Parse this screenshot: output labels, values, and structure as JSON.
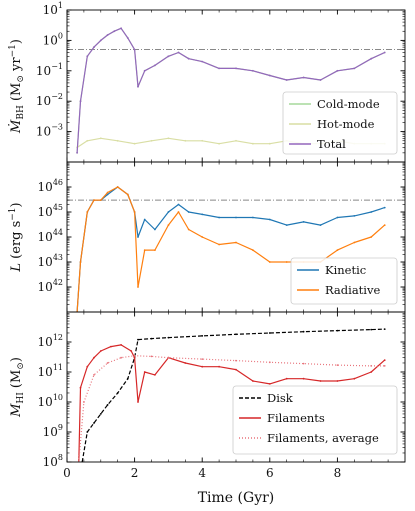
{
  "chart_data": [
    {
      "type": "line",
      "ylabel": "Ṁ_BH (M⊙ yr⁻¹)",
      "ylabel_parts": [
        "Ṁ",
        "BH",
        "(M",
        "⊙",
        " yr",
        "−1",
        ")"
      ],
      "yscale": "log",
      "ylim": [
        0.0001,
        10
      ],
      "ytick_values": [
        0.001,
        0.01,
        0.1,
        1,
        10
      ],
      "ytick_labels": [
        {
          "base": "10",
          "exp": "−3"
        },
        {
          "base": "10",
          "exp": "−2"
        },
        {
          "base": "10",
          "exp": "−1"
        },
        {
          "base": "10",
          "exp": "0"
        },
        {
          "base": "10",
          "exp": "1"
        }
      ],
      "reference_line": 0.5,
      "legend": {
        "placement": "lower-right"
      },
      "series": [
        {
          "name": "Cold-mode",
          "color": "#a6d99b",
          "x": [
            0.3,
            0.4,
            0.6,
            0.8,
            1.0,
            1.2,
            1.4,
            1.6,
            1.8,
            2.0,
            2.1,
            2.3,
            2.6,
            3.0,
            3.3,
            3.6,
            4.0,
            4.5,
            5.0,
            5.5,
            6.0,
            6.5,
            7.0,
            7.5,
            8.0,
            8.5,
            9.0,
            9.4
          ],
          "y": [
            0.0002,
            0.01,
            0.3,
            0.6,
            1.0,
            1.5,
            2.0,
            2.5,
            1.2,
            0.5,
            0.03,
            0.1,
            0.15,
            0.3,
            0.4,
            0.25,
            0.2,
            0.12,
            0.12,
            0.1,
            0.07,
            0.05,
            0.06,
            0.05,
            0.1,
            0.12,
            0.25,
            0.4
          ]
        },
        {
          "name": "Hot-mode",
          "color": "#d9dea4",
          "x": [
            0.3,
            0.6,
            1.0,
            1.5,
            2.0,
            2.5,
            3.0,
            3.5,
            4.0,
            4.5,
            5.0,
            5.5,
            6.0,
            6.5,
            7.0,
            7.5,
            8.0,
            8.5,
            9.0,
            9.4
          ],
          "y": [
            0.0003,
            0.0005,
            0.0006,
            0.0005,
            0.0004,
            0.0005,
            0.0006,
            0.0005,
            0.0005,
            0.0004,
            0.0005,
            0.0004,
            0.0004,
            0.0005,
            0.0004,
            0.0004,
            0.0005,
            0.0004,
            0.0004,
            0.0004
          ]
        },
        {
          "name": "Total",
          "color": "#9467bd",
          "x": [
            0.3,
            0.4,
            0.6,
            0.8,
            1.0,
            1.2,
            1.4,
            1.6,
            1.8,
            2.0,
            2.1,
            2.3,
            2.6,
            3.0,
            3.3,
            3.6,
            4.0,
            4.5,
            5.0,
            5.5,
            6.0,
            6.5,
            7.0,
            7.5,
            8.0,
            8.5,
            9.0,
            9.4
          ],
          "y": [
            0.0002,
            0.01,
            0.3,
            0.6,
            1.0,
            1.5,
            2.0,
            2.5,
            1.2,
            0.5,
            0.03,
            0.1,
            0.15,
            0.3,
            0.4,
            0.25,
            0.2,
            0.12,
            0.12,
            0.1,
            0.07,
            0.05,
            0.06,
            0.05,
            0.1,
            0.12,
            0.25,
            0.4
          ]
        }
      ]
    },
    {
      "type": "line",
      "ylabel": "L (erg s⁻¹)",
      "ylabel_parts": [
        "L",
        "(erg s",
        "−1",
        ")"
      ],
      "yscale": "log",
      "ylim": [
        1e+41,
        1e+47
      ],
      "ytick_values": [
        1e+42,
        1e+43,
        1e+44,
        1e+45,
        1e+46
      ],
      "ytick_labels": [
        {
          "base": "10",
          "exp": "42"
        },
        {
          "base": "10",
          "exp": "43"
        },
        {
          "base": "10",
          "exp": "44"
        },
        {
          "base": "10",
          "exp": "45"
        },
        {
          "base": "10",
          "exp": "46"
        }
      ],
      "reference_line": 3e+45,
      "legend": {
        "placement": "lower-right"
      },
      "series": [
        {
          "name": "Kinetic",
          "color": "#1f77b4",
          "x": [
            0.3,
            0.4,
            0.6,
            0.8,
            1.0,
            1.2,
            1.5,
            1.8,
            2.0,
            2.1,
            2.3,
            2.6,
            3.0,
            3.3,
            3.6,
            4.0,
            4.5,
            5.0,
            5.5,
            6.0,
            6.5,
            7.0,
            7.5,
            8.0,
            8.5,
            9.0,
            9.4
          ],
          "y": [
            1e+41,
            1e+43,
            1e+45,
            3e+45,
            3e+45,
            5e+45,
            1e+46,
            5e+45,
            1e+45,
            1e+44,
            5e+44,
            2e+44,
            1e+45,
            2e+45,
            1e+45,
            8e+44,
            6e+44,
            6e+44,
            6e+44,
            5e+44,
            3e+44,
            4e+44,
            3e+44,
            6e+44,
            7e+44,
            1e+45,
            1.5e+45
          ]
        },
        {
          "name": "Radiative",
          "color": "#ff7f0e",
          "x": [
            0.3,
            0.4,
            0.6,
            0.8,
            1.0,
            1.2,
            1.5,
            1.8,
            2.0,
            2.1,
            2.3,
            2.6,
            3.0,
            3.3,
            3.6,
            4.0,
            4.5,
            5.0,
            5.5,
            6.0,
            6.5,
            7.0,
            7.5,
            8.0,
            8.5,
            9.0,
            9.4
          ],
          "y": [
            1e+41,
            1e+43,
            1e+45,
            3e+45,
            3e+45,
            6e+45,
            1e+46,
            5e+45,
            1e+45,
            1e+42,
            3e+43,
            3e+43,
            3e+44,
            1e+45,
            2e+44,
            1e+44,
            5e+43,
            6e+43,
            3e+43,
            1e+43,
            1e+43,
            1e+43,
            1e+43,
            3e+43,
            6e+43,
            1e+44,
            3e+44
          ]
        }
      ]
    },
    {
      "type": "line",
      "ylabel": "M_HI (M⊙)",
      "ylabel_parts": [
        "M",
        "HI",
        "(M",
        "⊙",
        ")"
      ],
      "yscale": "log",
      "ylim": [
        100000000.0,
        10000000000000.0
      ],
      "ytick_values": [
        100000000.0,
        1000000000.0,
        10000000000.0,
        100000000000.0,
        1000000000000.0
      ],
      "ytick_labels": [
        {
          "base": "10",
          "exp": "8"
        },
        {
          "base": "10",
          "exp": "9"
        },
        {
          "base": "10",
          "exp": "10"
        },
        {
          "base": "10",
          "exp": "11"
        },
        {
          "base": "10",
          "exp": "12"
        }
      ],
      "xlabel": "Time (Gyr)",
      "xlim": [
        0,
        10
      ],
      "xtick_values": [
        0,
        2,
        4,
        6,
        8
      ],
      "xtick_labels": [
        "0",
        "2",
        "4",
        "6",
        "8"
      ],
      "legend": {
        "placement": "lower-right"
      },
      "series": [
        {
          "name": "Disk",
          "color": "#000000",
          "dash": "4,2",
          "x": [
            0.45,
            0.6,
            0.8,
            1.0,
            1.2,
            1.5,
            1.8,
            2.0,
            2.1,
            2.5,
            3.0,
            4.0,
            5.0,
            6.0,
            7.0,
            8.0,
            9.0,
            9.4
          ],
          "y": [
            100000000.0,
            1000000000.0,
            2000000000.0,
            4000000000.0,
            8000000000.0,
            20000000000.0,
            60000000000.0,
            300000000000.0,
            1200000000000.0,
            1300000000000.0,
            1400000000000.0,
            1600000000000.0,
            1800000000000.0,
            2000000000000.0,
            2200000000000.0,
            2400000000000.0,
            2600000000000.0,
            2700000000000.0
          ]
        },
        {
          "name": "Filaments",
          "color": "#d62728",
          "x": [
            0.35,
            0.4,
            0.6,
            0.8,
            1.0,
            1.3,
            1.6,
            1.9,
            2.0,
            2.1,
            2.3,
            2.6,
            3.0,
            3.5,
            4.0,
            4.5,
            5.0,
            5.5,
            6.0,
            6.5,
            7.0,
            7.5,
            8.0,
            8.5,
            9.0,
            9.4
          ],
          "y": [
            100000000.0,
            30000000000.0,
            150000000000.0,
            300000000000.0,
            500000000000.0,
            700000000000.0,
            800000000000.0,
            500000000000.0,
            300000000000.0,
            10000000000.0,
            100000000000.0,
            80000000000.0,
            300000000000.0,
            200000000000.0,
            150000000000.0,
            150000000000.0,
            120000000000.0,
            50000000000.0,
            40000000000.0,
            60000000000.0,
            60000000000.0,
            50000000000.0,
            50000000000.0,
            60000000000.0,
            100000000000.0,
            250000000000.0
          ]
        },
        {
          "name": "Filaments, average",
          "color": "#e8737b",
          "dash": "1,2",
          "x": [
            0.35,
            0.5,
            0.8,
            1.2,
            1.6,
            2.0,
            2.5,
            3.0,
            4.0,
            5.0,
            6.0,
            7.0,
            8.0,
            9.0,
            9.4
          ],
          "y": [
            100000000.0,
            10000000000.0,
            80000000000.0,
            200000000000.0,
            300000000000.0,
            350000000000.0,
            330000000000.0,
            300000000000.0,
            270000000000.0,
            240000000000.0,
            210000000000.0,
            190000000000.0,
            170000000000.0,
            160000000000.0,
            160000000000.0
          ]
        }
      ]
    }
  ]
}
